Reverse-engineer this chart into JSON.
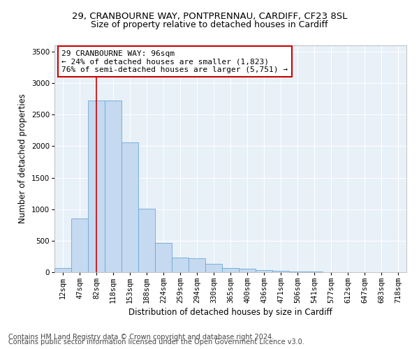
{
  "title1": "29, CRANBOURNE WAY, PONTPRENNAU, CARDIFF, CF23 8SL",
  "title2": "Size of property relative to detached houses in Cardiff",
  "xlabel": "Distribution of detached houses by size in Cardiff",
  "ylabel": "Number of detached properties",
  "footer1": "Contains HM Land Registry data © Crown copyright and database right 2024.",
  "footer2": "Contains public sector information licensed under the Open Government Licence v3.0.",
  "annotation_title": "29 CRANBOURNE WAY: 96sqm",
  "annotation_line1": "← 24% of detached houses are smaller (1,823)",
  "annotation_line2": "76% of semi-detached houses are larger (5,751) →",
  "bar_categories": [
    "12sqm",
    "47sqm",
    "82sqm",
    "118sqm",
    "153sqm",
    "188sqm",
    "224sqm",
    "259sqm",
    "294sqm",
    "330sqm",
    "365sqm",
    "400sqm",
    "436sqm",
    "471sqm",
    "506sqm",
    "541sqm",
    "577sqm",
    "612sqm",
    "647sqm",
    "683sqm",
    "718sqm"
  ],
  "bar_values": [
    65,
    850,
    2720,
    2720,
    2060,
    1010,
    460,
    230,
    220,
    130,
    65,
    55,
    35,
    25,
    15,
    10,
    5,
    3,
    0,
    0,
    0
  ],
  "bar_color": "#c5d9f0",
  "bar_edge_color": "#6aaad4",
  "vline_color": "#cc0000",
  "vline_x": 2.0,
  "ylim": [
    0,
    3600
  ],
  "yticks": [
    0,
    500,
    1000,
    1500,
    2000,
    2500,
    3000,
    3500
  ],
  "bg_color": "#e8f0f8",
  "grid_color": "#ffffff",
  "annotation_box_facecolor": "#ffffff",
  "annotation_box_edge": "#cc0000",
  "title1_fontsize": 9.5,
  "title2_fontsize": 9,
  "axis_label_fontsize": 8.5,
  "tick_fontsize": 7.5,
  "annotation_fontsize": 8,
  "footer_fontsize": 7
}
